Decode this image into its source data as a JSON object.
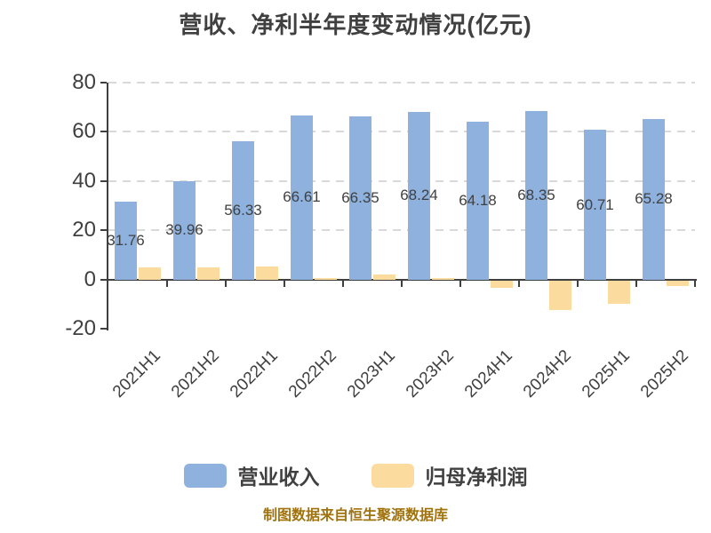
{
  "title": "营收、净利半年度变动情况(亿元)",
  "legend": {
    "revenue": "营业收入",
    "net_profit": "归母净利润"
  },
  "footer": {
    "source_note": "制图数据来自恒生聚源数据库"
  },
  "colors": {
    "revenue_bar": "#8FB1DD",
    "net_profit_bar": "#FBDB9E",
    "text": "#404040",
    "gridline": "#D9D9D9",
    "axis": "#3F3F3F",
    "source_note": "#A1730F"
  },
  "chart_data": {
    "type": "bar",
    "title": "营收、净利半年度变动情况(亿元)",
    "categories": [
      "2021H1",
      "2021H2",
      "2022H1",
      "2022H2",
      "2023H1",
      "2023H2",
      "2024H1",
      "2024H2",
      "2025H1",
      "2025H2"
    ],
    "series": [
      {
        "name": "营业收入",
        "values": [
          31.76,
          39.96,
          56.33,
          66.61,
          66.35,
          68.24,
          64.18,
          68.35,
          60.71,
          65.28
        ],
        "labels": [
          "31.76",
          "39.96",
          "56.33",
          "66.61",
          "66.35",
          "68.24",
          "64.18",
          "68.35",
          "60.71",
          "65.28"
        ],
        "color": "#8FB1DD"
      },
      {
        "name": "归母净利润",
        "values": [
          5.0,
          5.0,
          5.1,
          0.7,
          2.0,
          0.5,
          -3.0,
          -12.0,
          -9.4,
          -2.4
        ],
        "labels": [],
        "color": "#FBDB9E"
      }
    ],
    "xlabel": "",
    "ylabel": "",
    "ylim": [
      -20,
      80
    ],
    "y_ticks": [
      80,
      60,
      40,
      20,
      0,
      -20
    ],
    "grid": "horizontal-dashed",
    "legend_position": "bottom"
  }
}
